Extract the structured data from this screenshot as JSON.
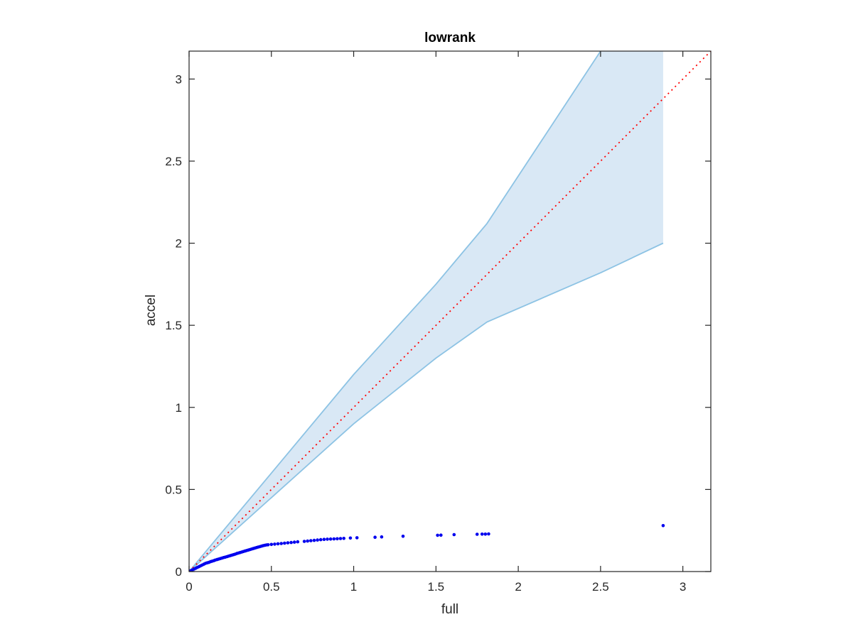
{
  "chart_data": {
    "type": "scatter",
    "title": "lowrank",
    "xlabel": "full",
    "ylabel": "accel",
    "xlim": [
      0,
      3.17
    ],
    "ylim": [
      0,
      3.17
    ],
    "xticks": [
      "0",
      "0.5",
      "1",
      "1.5",
      "2",
      "2.5",
      "3"
    ],
    "yticks": [
      "0",
      "0.5",
      "1",
      "1.5",
      "2",
      "2.5",
      "3"
    ],
    "xtick_values": [
      0,
      0.5,
      1,
      1.5,
      2,
      2.5,
      3
    ],
    "ytick_values": [
      0,
      0.5,
      1,
      1.5,
      2,
      2.5,
      3
    ],
    "grid": false,
    "reference_line": {
      "style": "dotted",
      "color": "#ff0000",
      "x": [
        0,
        3.17
      ],
      "y": [
        0,
        3.17
      ]
    },
    "band": {
      "color_fill": "#d9e8f5",
      "color_edge": "#8dc3e4",
      "x": [
        0,
        0.5,
        1.0,
        1.5,
        1.81,
        2.5,
        2.88
      ],
      "upper": [
        0,
        0.6,
        1.2,
        1.75,
        2.12,
        3.17,
        3.17
      ],
      "lower": [
        0,
        0.45,
        0.9,
        1.3,
        1.52,
        1.82,
        2.0
      ]
    },
    "series": [
      {
        "color": "#0000ee",
        "x": [
          0.0,
          0.01,
          0.02,
          0.03,
          0.04,
          0.05,
          0.06,
          0.07,
          0.08,
          0.09,
          0.1,
          0.11,
          0.12,
          0.13,
          0.14,
          0.15,
          0.16,
          0.17,
          0.18,
          0.19,
          0.2,
          0.21,
          0.22,
          0.23,
          0.24,
          0.25,
          0.26,
          0.27,
          0.28,
          0.29,
          0.3,
          0.31,
          0.32,
          0.33,
          0.34,
          0.35,
          0.36,
          0.37,
          0.38,
          0.39,
          0.4,
          0.41,
          0.42,
          0.43,
          0.44,
          0.45,
          0.46,
          0.47,
          0.48,
          0.5,
          0.52,
          0.54,
          0.56,
          0.58,
          0.6,
          0.62,
          0.64,
          0.66,
          0.7,
          0.72,
          0.74,
          0.76,
          0.78,
          0.8,
          0.82,
          0.84,
          0.86,
          0.88,
          0.9,
          0.92,
          0.94,
          0.98,
          1.02,
          1.13,
          1.17,
          1.3,
          1.51,
          1.53,
          1.61,
          1.75,
          1.78,
          1.8,
          1.82,
          2.88
        ],
        "y": [
          0.0,
          0.005,
          0.01,
          0.015,
          0.02,
          0.025,
          0.03,
          0.035,
          0.04,
          0.045,
          0.05,
          0.053,
          0.056,
          0.06,
          0.063,
          0.066,
          0.07,
          0.073,
          0.076,
          0.079,
          0.082,
          0.085,
          0.088,
          0.091,
          0.094,
          0.097,
          0.1,
          0.103,
          0.106,
          0.11,
          0.113,
          0.116,
          0.119,
          0.122,
          0.125,
          0.128,
          0.131,
          0.134,
          0.137,
          0.14,
          0.143,
          0.146,
          0.149,
          0.152,
          0.155,
          0.158,
          0.16,
          0.162,
          0.163,
          0.165,
          0.167,
          0.169,
          0.171,
          0.173,
          0.175,
          0.177,
          0.179,
          0.181,
          0.184,
          0.186,
          0.188,
          0.19,
          0.192,
          0.194,
          0.196,
          0.197,
          0.198,
          0.199,
          0.2,
          0.201,
          0.202,
          0.204,
          0.206,
          0.209,
          0.211,
          0.215,
          0.221,
          0.222,
          0.225,
          0.227,
          0.228,
          0.228,
          0.229,
          0.28
        ]
      }
    ]
  }
}
